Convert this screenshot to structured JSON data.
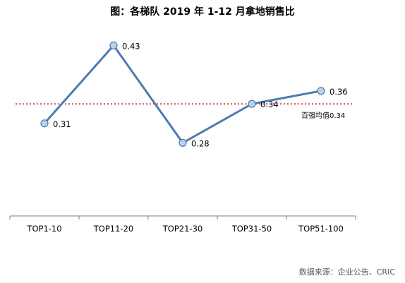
{
  "title": "图：各梯队 2019 年 1-12 月拿地销售比",
  "source": "数据来源：企业公告、CRIC",
  "chart_data": {
    "type": "line",
    "title": "图：各梯队 2019 年 1-12 月拿地销售比",
    "categories": [
      "TOP1-10",
      "TOP11-20",
      "TOP21-30",
      "TOP31-50",
      "TOP51-100"
    ],
    "series": [
      {
        "values": [
          0.31,
          0.43,
          0.28,
          0.34,
          0.36
        ],
        "data_labels": [
          "0.31",
          "0.43",
          "0.28",
          "0.34",
          "0.36"
        ]
      }
    ],
    "reference_line": {
      "label": "百强均值0.34",
      "value": 0.34,
      "color": "#c00000",
      "style": "dotted"
    },
    "ylim": [
      0.2,
      0.45
    ],
    "grid": false,
    "legend": "none",
    "line_color": "#4f7bb4",
    "marker_fill": "#bcd0ea",
    "axis_color": "#7f7f7f"
  }
}
